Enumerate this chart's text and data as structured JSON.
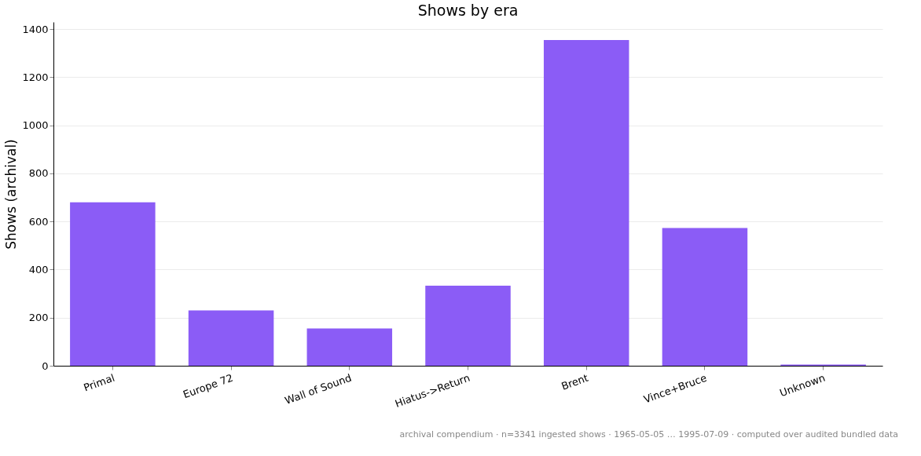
{
  "chart_data": {
    "type": "bar",
    "title": "Shows by era",
    "ylabel": "Shows (archival)",
    "categories": [
      "Primal",
      "Europe 72",
      "Wall of Sound",
      "Hiatus->Return",
      "Brent",
      "Vince+Bruce",
      "Unknown"
    ],
    "values": [
      680,
      230,
      155,
      333,
      1355,
      573,
      5
    ],
    "color": "#8b5cf6",
    "ylim": [
      0,
      1430
    ],
    "yticks": [
      0,
      200,
      400,
      600,
      800,
      1000,
      1200,
      1400
    ],
    "grid": "y",
    "annotations": [
      "archival compendium · n=3341 ingested shows · 1965-05-05 … 1995-07-09 · computed over audited bundled data"
    ]
  }
}
